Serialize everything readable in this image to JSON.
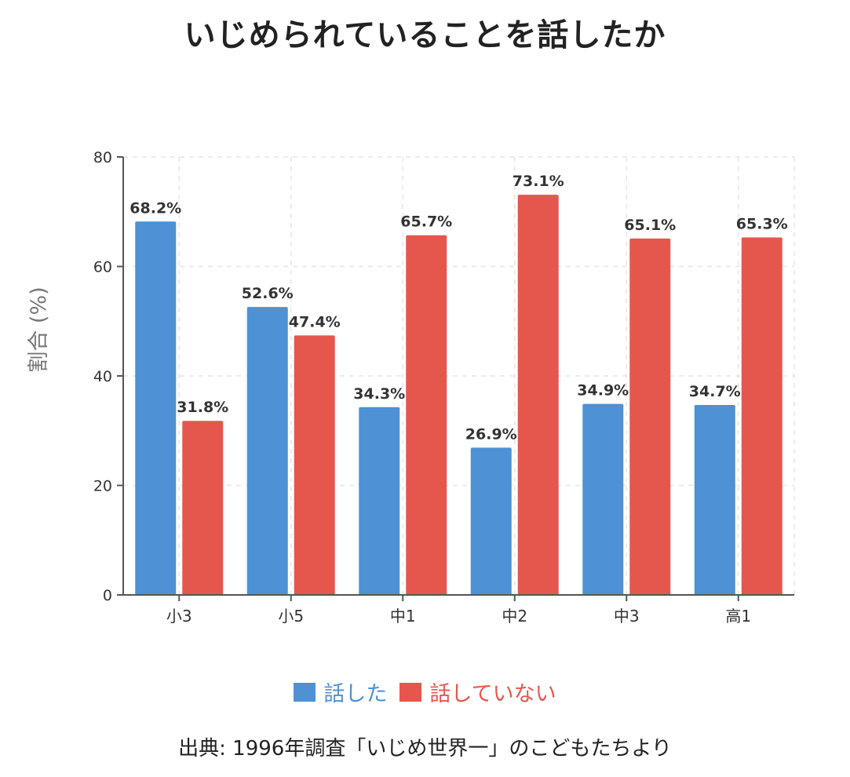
{
  "chart_data": {
    "type": "bar",
    "title": "いじめられていることを話したか",
    "ylabel": "割合 (%)",
    "xlabel": "",
    "ylim": [
      0,
      80
    ],
    "yticks": [
      0,
      20,
      40,
      60,
      80
    ],
    "grid": true,
    "legend_placement": "bottom-center",
    "categories": [
      "小3",
      "小5",
      "中1",
      "中2",
      "中3",
      "高1"
    ],
    "series": [
      {
        "name": "話した",
        "color": "#4e91d4",
        "values": [
          68.2,
          52.6,
          34.3,
          26.9,
          34.9,
          34.7
        ],
        "labels": [
          "68.2%",
          "52.6%",
          "34.3%",
          "26.9%",
          "34.9%",
          "34.7%"
        ]
      },
      {
        "name": "話していない",
        "color": "#e5574d",
        "values": [
          31.8,
          47.4,
          65.7,
          73.1,
          65.1,
          65.3
        ],
        "labels": [
          "31.8%",
          "47.4%",
          "65.7%",
          "73.1%",
          "65.1%",
          "65.3%"
        ]
      }
    ]
  },
  "footer": {
    "source": "出典: 1996年調査「いじめ世界一」のこどもたちより"
  }
}
